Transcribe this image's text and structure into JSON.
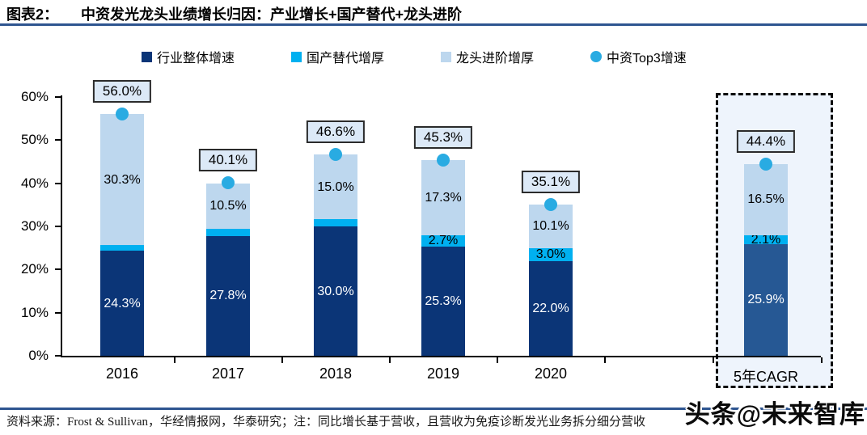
{
  "figure": {
    "label": "图表2：",
    "title": "中资发光龙头业绩增长归因：产业增长+国产替代+龙头进阶"
  },
  "legend": [
    {
      "label": "行业整体增速",
      "color": "#0b3577",
      "shape": "square"
    },
    {
      "label": "国产替代增厚",
      "color": "#00b0f0",
      "shape": "square"
    },
    {
      "label": "龙头进阶增厚",
      "color": "#bdd7ee",
      "shape": "square"
    },
    {
      "label": "中资Top3增速",
      "color": "#29abe2",
      "shape": "circle"
    }
  ],
  "chart_data": {
    "type": "bar",
    "stacked": true,
    "title": "中资发光龙头业绩增长归因：产业增长+国产替代+龙头进阶",
    "categories": [
      "2016",
      "2017",
      "2018",
      "2019",
      "2020",
      "5年CAGR"
    ],
    "series": [
      {
        "name": "行业整体增速",
        "color": "#0b3577",
        "highlight_color": "#265894",
        "values": [
          24.3,
          27.8,
          30.0,
          25.3,
          22.0,
          25.9
        ]
      },
      {
        "name": "国产替代增厚",
        "color": "#00b0f0",
        "values": [
          1.4,
          1.7,
          1.6,
          2.7,
          3.0,
          2.1
        ]
      },
      {
        "name": "龙头进阶增厚",
        "color": "#bdd7ee",
        "values": [
          30.3,
          10.5,
          15.0,
          17.3,
          10.1,
          16.5
        ]
      }
    ],
    "markers": {
      "name": "中资Top3增速",
      "color": "#29abe2",
      "values": [
        56.0,
        40.1,
        46.6,
        45.3,
        35.1,
        44.4
      ]
    },
    "total_labels": [
      "56.0%",
      "40.1%",
      "46.6%",
      "45.3%",
      "35.1%",
      "44.4%"
    ],
    "ylim": [
      0,
      60
    ],
    "yticks": [
      "0%",
      "10%",
      "20%",
      "30%",
      "40%",
      "50%",
      "60%"
    ],
    "grid": false,
    "legend_position": "top",
    "highlight_category": "5年CAGR",
    "label_box_bg": "#dce9f7",
    "highlight_box_bg": "#eef4fc"
  },
  "footer": {
    "source": "资料来源：Frost & Sullivan，华经情报网，华泰研究；注：同比增长基于营收，且营收为免疫诊断发光业务拆分细分营收",
    "watermark": "头条@未来智库"
  }
}
